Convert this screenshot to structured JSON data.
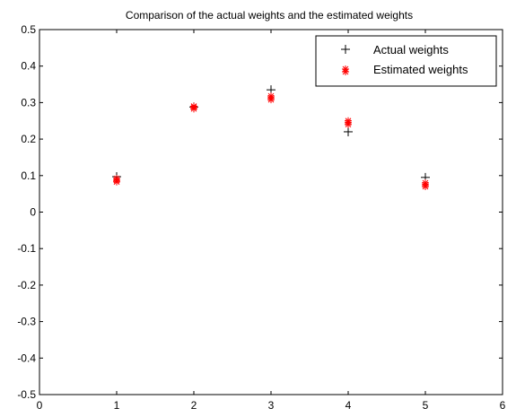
{
  "chart_data": {
    "type": "scatter",
    "title": "Comparison of the actual weights and the estimated weights",
    "xlabel": "",
    "ylabel": "",
    "xlim": [
      0,
      6
    ],
    "ylim": [
      -0.5,
      0.5
    ],
    "x_ticks": [
      "0",
      "1",
      "2",
      "3",
      "4",
      "5",
      "6"
    ],
    "y_ticks": [
      "-0.5",
      "-0.4",
      "-0.3",
      "-0.2",
      "-0.1",
      "0",
      "0.1",
      "0.2",
      "0.3",
      "0.4",
      "0.5"
    ],
    "grid": false,
    "legend_position": "top-right",
    "series": [
      {
        "name": "Actual weights",
        "marker": "plus",
        "color": "#000000",
        "points": [
          [
            1,
            0.097
          ],
          [
            2,
            0.288
          ],
          [
            3,
            0.335
          ],
          [
            4,
            0.22
          ],
          [
            5,
            0.095
          ]
        ]
      },
      {
        "name": "Estimated weights",
        "marker": "star",
        "color": "#ff0000",
        "points": [
          [
            1,
            0.092
          ],
          [
            1,
            0.087
          ],
          [
            1,
            0.083
          ],
          [
            2,
            0.29
          ],
          [
            2,
            0.287
          ],
          [
            2,
            0.283
          ],
          [
            3,
            0.318
          ],
          [
            3,
            0.313
          ],
          [
            3,
            0.308
          ],
          [
            4,
            0.25
          ],
          [
            4,
            0.245
          ],
          [
            4,
            0.24
          ],
          [
            5,
            0.08
          ],
          [
            5,
            0.075
          ],
          [
            5,
            0.07
          ]
        ]
      }
    ]
  }
}
